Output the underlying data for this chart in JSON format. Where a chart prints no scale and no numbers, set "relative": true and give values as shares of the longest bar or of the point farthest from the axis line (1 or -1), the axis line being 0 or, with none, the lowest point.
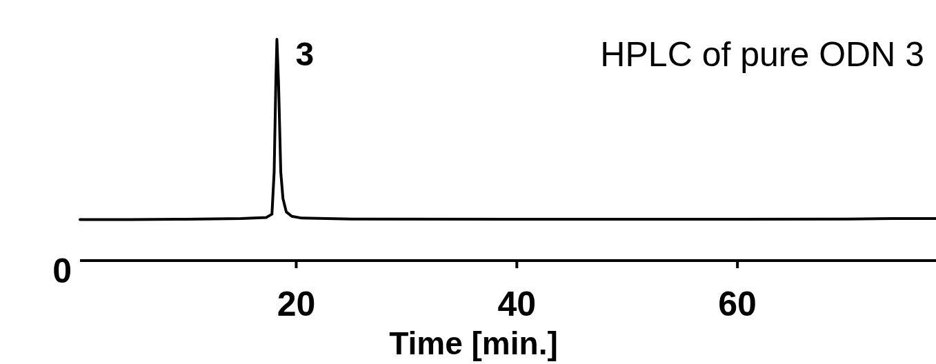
{
  "chart_data": {
    "type": "line",
    "title": "HPLC of pure ODN 3",
    "xlabel": "Time [min.]",
    "relative": true,
    "x": [
      0.4,
      5,
      10,
      15,
      17.3,
      17.8,
      18.0,
      18.15,
      18.25,
      18.4,
      18.6,
      18.8,
      19.1,
      19.6,
      20.5,
      25,
      40,
      60,
      70,
      74,
      78
    ],
    "series": [
      {
        "color": "#000000",
        "values": [
          0.185,
          0.185,
          0.187,
          0.19,
          0.195,
          0.21,
          0.4,
          0.8,
          1.0,
          0.8,
          0.4,
          0.28,
          0.22,
          0.2,
          0.192,
          0.188,
          0.187,
          0.187,
          0.188,
          0.19,
          0.19
        ]
      }
    ],
    "xlim": [
      0.4,
      78
    ],
    "xticks": [
      20,
      40,
      60
    ],
    "annotations": [
      "0",
      {
        "text": "3",
        "x": 18.25,
        "y": 1
      }
    ],
    "marker": "none",
    "line_style": "solid",
    "grid": false
  }
}
